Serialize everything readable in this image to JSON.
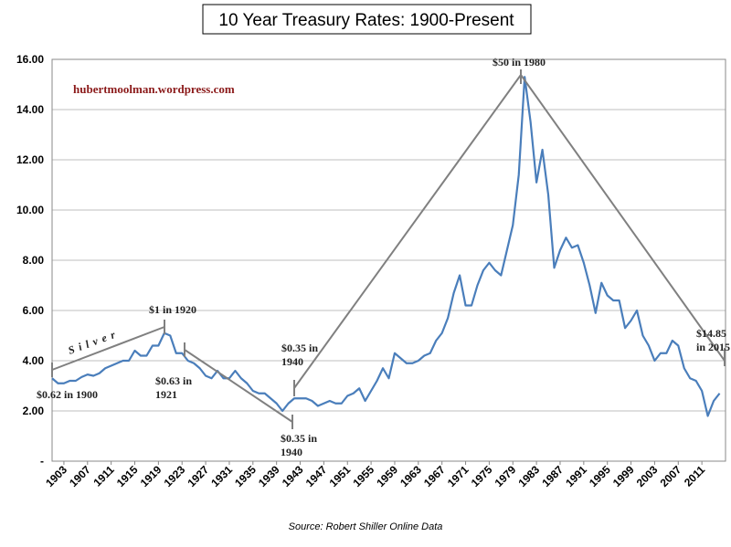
{
  "chart_data": {
    "type": "line",
    "title": "10 Year Treasury Rates: 1900-Present",
    "watermark": "hubertmoolman.wordpress.com",
    "source": "Source: Robert Shiller Online Data",
    "color": "#4a7ebb",
    "grid": true,
    "xlim": [
      1901,
      2015
    ],
    "xticks": [
      1903,
      1907,
      1911,
      1915,
      1919,
      1923,
      1927,
      1931,
      1935,
      1939,
      1943,
      1947,
      1951,
      1955,
      1959,
      1963,
      1967,
      1971,
      1975,
      1979,
      1983,
      1987,
      1991,
      1995,
      1999,
      2003,
      2007,
      2011
    ],
    "ylim": [
      0,
      16
    ],
    "yticks": [
      {
        "value": 0,
        "label": "-"
      },
      {
        "value": 2,
        "label": "2.00"
      },
      {
        "value": 4,
        "label": "4.00"
      },
      {
        "value": 6,
        "label": "6.00"
      },
      {
        "value": 8,
        "label": "8.00"
      },
      {
        "value": 10,
        "label": "10.00"
      },
      {
        "value": 12,
        "label": "12.00"
      },
      {
        "value": 14,
        "label": "14.00"
      },
      {
        "value": 16,
        "label": "16.00"
      }
    ],
    "x": [
      1901,
      1902,
      1903,
      1904,
      1905,
      1906,
      1907,
      1908,
      1909,
      1910,
      1911,
      1912,
      1913,
      1914,
      1915,
      1916,
      1917,
      1918,
      1919,
      1920,
      1921,
      1922,
      1923,
      1924,
      1925,
      1926,
      1927,
      1928,
      1929,
      1930,
      1931,
      1932,
      1933,
      1934,
      1935,
      1936,
      1937,
      1938,
      1939,
      1940,
      1941,
      1942,
      1943,
      1944,
      1945,
      1946,
      1947,
      1948,
      1949,
      1950,
      1951,
      1952,
      1953,
      1954,
      1955,
      1956,
      1957,
      1958,
      1959,
      1960,
      1961,
      1962,
      1963,
      1964,
      1965,
      1966,
      1967,
      1968,
      1969,
      1970,
      1971,
      1972,
      1973,
      1974,
      1975,
      1976,
      1977,
      1978,
      1979,
      1980,
      1981,
      1982,
      1983,
      1984,
      1985,
      1986,
      1987,
      1988,
      1989,
      1990,
      1991,
      1992,
      1993,
      1994,
      1995,
      1996,
      1997,
      1998,
      1999,
      2000,
      2001,
      2002,
      2003,
      2004,
      2005,
      2006,
      2007,
      2008,
      2009,
      2010,
      2011,
      2012,
      2013,
      2014
    ],
    "values": [
      3.3,
      3.1,
      3.1,
      3.2,
      3.2,
      3.35,
      3.45,
      3.4,
      3.5,
      3.7,
      3.8,
      3.9,
      4.0,
      4.0,
      4.4,
      4.2,
      4.2,
      4.6,
      4.6,
      5.1,
      5.0,
      4.3,
      4.3,
      4.0,
      3.9,
      3.7,
      3.4,
      3.3,
      3.6,
      3.3,
      3.3,
      3.6,
      3.3,
      3.1,
      2.8,
      2.7,
      2.7,
      2.5,
      2.3,
      2.0,
      2.3,
      2.5,
      2.5,
      2.5,
      2.4,
      2.2,
      2.3,
      2.4,
      2.3,
      2.3,
      2.6,
      2.7,
      2.9,
      2.4,
      2.8,
      3.2,
      3.7,
      3.3,
      4.3,
      4.1,
      3.9,
      3.9,
      4.0,
      4.2,
      4.3,
      4.8,
      5.1,
      5.7,
      6.7,
      7.4,
      6.2,
      6.2,
      7.0,
      7.6,
      7.9,
      7.6,
      7.4,
      8.4,
      9.4,
      11.4,
      15.3,
      13.5,
      11.1,
      12.4,
      10.6,
      7.7,
      8.4,
      8.9,
      8.5,
      8.6,
      7.9,
      7.0,
      5.9,
      7.1,
      6.6,
      6.4,
      6.4,
      5.3,
      5.6,
      6.0,
      5.0,
      4.6,
      4.0,
      4.3,
      4.3,
      4.8,
      4.6,
      3.7,
      3.3,
      3.2,
      2.8,
      1.8,
      2.4,
      2.7
    ],
    "annotations": [
      [
        "$0.62 in 1900"
      ],
      [
        "$1 in 1920"
      ],
      [
        "$0.63 in",
        "1921"
      ],
      [
        "$0.35 in",
        "1940"
      ],
      [
        "$0.35 in",
        "1940"
      ],
      [
        "$50 in 1980"
      ],
      [
        "$14.85",
        "in 2015"
      ],
      [
        "Silver"
      ]
    ]
  }
}
